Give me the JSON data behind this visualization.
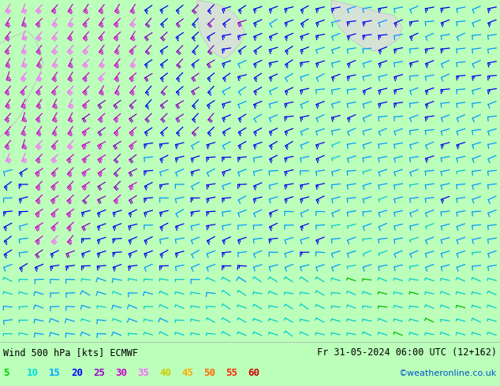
{
  "title_left": "Wind 500 hPa [kts] ECMWF",
  "title_right": "Fr 31-05-2024 06:00 UTC (12+162)",
  "credit": "©weatheronline.co.uk",
  "legend_values": [
    5,
    10,
    15,
    20,
    25,
    30,
    35,
    40,
    45,
    50,
    55,
    60
  ],
  "legend_colors": [
    "#00cc00",
    "#00dddd",
    "#00aaff",
    "#0000ff",
    "#9900cc",
    "#cc00cc",
    "#ff66ff",
    "#cccc00",
    "#ffaa00",
    "#ff6600",
    "#ff2200",
    "#cc0000"
  ],
  "bg_color_map": "#bbffbb",
  "bg_color_land": "#dddddd",
  "figsize": [
    6.34,
    4.9
  ],
  "dpi": 100,
  "wind_colors": {
    "5": "#00bb00",
    "10": "#00cccc",
    "15": "#0099ff",
    "20": "#0000ee",
    "25": "#8800bb",
    "30": "#cc00cc",
    "35": "#ff66ff",
    "40": "#cccc00",
    "45": "#ffaa00",
    "50": "#ff6600",
    "55": "#ff2200",
    "60": "#cc0000"
  }
}
